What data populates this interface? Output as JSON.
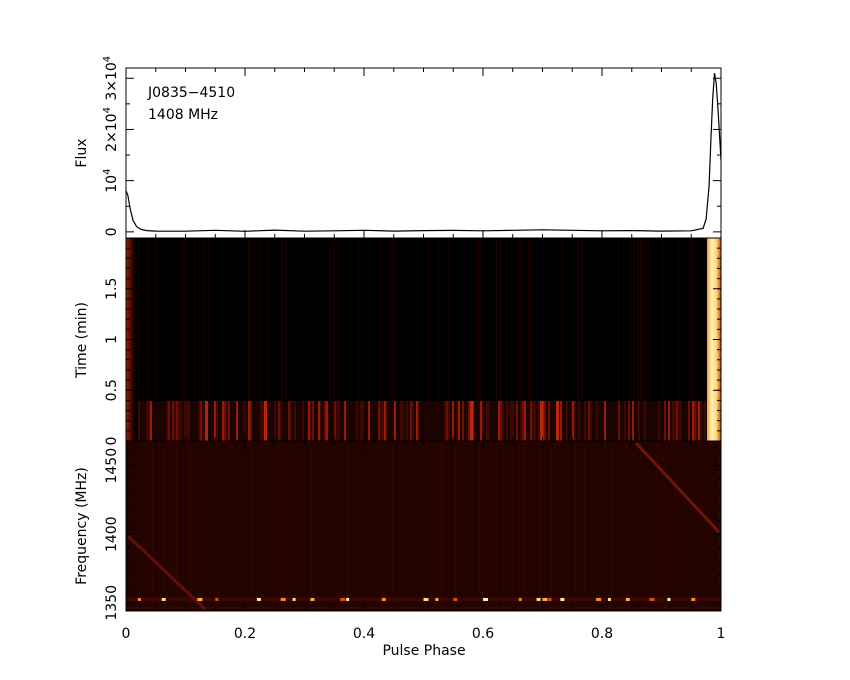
{
  "chart_data": [
    {
      "type": "line",
      "panel": "profile",
      "annotations": [
        "J0835−4510",
        "1408 MHz"
      ],
      "ylabel": "Flux",
      "ylim": [
        -1200,
        32000
      ],
      "y_ticks": [
        {
          "v": 0,
          "label": "0"
        },
        {
          "v": 10000,
          "label": "10",
          "sup": "4"
        },
        {
          "v": 20000,
          "label": "2×10",
          "sup": "4"
        },
        {
          "v": 30000,
          "label": "3×10",
          "sup": "4"
        }
      ],
      "x": [
        0.0,
        0.003,
        0.007,
        0.012,
        0.018,
        0.025,
        0.035,
        0.05,
        0.1,
        0.15,
        0.2,
        0.25,
        0.3,
        0.35,
        0.4,
        0.45,
        0.5,
        0.55,
        0.6,
        0.65,
        0.7,
        0.75,
        0.8,
        0.85,
        0.9,
        0.95,
        0.97,
        0.975,
        0.98,
        0.983,
        0.986,
        0.989,
        0.992,
        0.995,
        0.998,
        1.0
      ],
      "values": [
        8000,
        7200,
        4500,
        2200,
        1000,
        500,
        250,
        150,
        120,
        300,
        100,
        350,
        120,
        200,
        300,
        150,
        250,
        280,
        200,
        300,
        400,
        300,
        200,
        250,
        150,
        200,
        700,
        2500,
        9000,
        18000,
        26000,
        31000,
        29000,
        24000,
        18000,
        14000
      ],
      "xlim": [
        0,
        1
      ]
    },
    {
      "type": "heatmap",
      "panel": "time-vs-phase",
      "ylabel": "Time (min)",
      "ylim": [
        0,
        2
      ],
      "y_ticks": [
        "0",
        "0.5",
        "1",
        "1.5"
      ],
      "xlim": [
        0,
        1
      ]
    },
    {
      "type": "heatmap",
      "panel": "frequency-vs-phase",
      "ylabel": "Frequency (MHz)",
      "xlabel": "Pulse Phase",
      "ylim": [
        1344,
        1468
      ],
      "y_ticks": [
        "1350",
        "1400",
        "1450"
      ],
      "x_ticks": [
        "0",
        "0.2",
        "0.4",
        "0.6",
        "0.8",
        "1"
      ],
      "xlim": [
        0,
        1
      ]
    }
  ],
  "colors": {
    "line": "#000000",
    "heat_low": "#000000",
    "heat_mid": "#8b0a00",
    "heat_high": "#ff8c1a",
    "heat_peak": "#fff6c8"
  }
}
